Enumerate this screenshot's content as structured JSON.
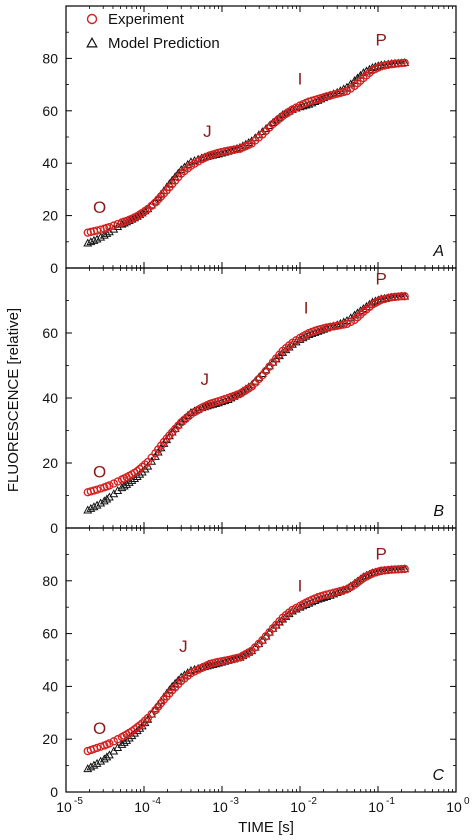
{
  "chart_data": {
    "type": "scatter",
    "xlabel": "TIME [s]",
    "ylabel": "FLUORESCENCE [relative]",
    "x_scale": "log",
    "xlim": [
      1e-05,
      1
    ],
    "x_ticks": [
      {
        "base": "10",
        "exp": "-5"
      },
      {
        "base": "10",
        "exp": "-4"
      },
      {
        "base": "10",
        "exp": "-3"
      },
      {
        "base": "10",
        "exp": "-2"
      },
      {
        "base": "10",
        "exp": "-1"
      },
      {
        "base": "10",
        "exp": "0"
      }
    ],
    "legend": {
      "position": "top-left",
      "entries": [
        {
          "label": "Experiment",
          "marker": "circle",
          "color": "#d42020"
        },
        {
          "label": "Model Prediction",
          "marker": "triangle",
          "color": "#111111"
        }
      ]
    },
    "colors": {
      "experiment": "#d42020",
      "model": "#111111"
    },
    "panels": [
      {
        "panel_label": "A",
        "ylim": [
          0,
          100
        ],
        "y_ticks": [
          "0",
          "20",
          "40",
          "60",
          "80"
        ],
        "annotations": [
          {
            "text": "O",
            "x": 2.7e-05,
            "y": 21
          },
          {
            "text": "J",
            "x": 0.00065,
            "y": 50
          },
          {
            "text": "I",
            "x": 0.01,
            "y": 70
          },
          {
            "text": "P",
            "x": 0.11,
            "y": 85
          }
        ],
        "series": [
          {
            "name": "Experiment",
            "x": [
              1.9e-05,
              2.5e-05,
              3.1e-05,
              3.6e-05,
              4.1e-05,
              4.6e-05,
              5.2e-05,
              6e-05,
              7e-05,
              8.2e-05,
              9.5e-05,
              0.000112,
              0.00014,
              0.00018,
              0.00023,
              0.0003,
              0.0004,
              0.00055,
              0.0007,
              0.0009,
              0.0012,
              0.0017,
              0.0024,
              0.0033,
              0.0045,
              0.006,
              0.008,
              0.01,
              0.013,
              0.017,
              0.022,
              0.03,
              0.04,
              0.05,
              0.065,
              0.085,
              0.11,
              0.15,
              0.2,
              0.22
            ],
            "y": [
              13.5,
              14.3,
              15.0,
              15.6,
              16.2,
              16.8,
              17.4,
              18.0,
              18.8,
              19.8,
              21.0,
              22.5,
              25.0,
              28.5,
              32.0,
              36.0,
              39.0,
              41.5,
              43.0,
              44.0,
              44.8,
              45.5,
              47.5,
              51.0,
              55.0,
              58.0,
              60.5,
              62.0,
              63.5,
              64.5,
              65.5,
              66.5,
              67.5,
              69.5,
              72.5,
              75.5,
              77.0,
              77.8,
              78.2,
              78.3
            ]
          },
          {
            "name": "Model Prediction",
            "x": [
              1.9e-05,
              2.5e-05,
              3.1e-05,
              3.6e-05,
              4.1e-05,
              4.6e-05,
              5.2e-05,
              6e-05,
              7e-05,
              8.2e-05,
              9.5e-05,
              0.000112,
              0.00014,
              0.00018,
              0.00023,
              0.0003,
              0.0004,
              0.00055,
              0.0007,
              0.0009,
              0.0012,
              0.0017,
              0.0024,
              0.0033,
              0.0045,
              0.006,
              0.008,
              0.01,
              0.013,
              0.017,
              0.022,
              0.03,
              0.04,
              0.05,
              0.065,
              0.085,
              0.11,
              0.15,
              0.2,
              0.22
            ],
            "y": [
              9.5,
              11.0,
              12.5,
              13.8,
              14.8,
              15.8,
              16.7,
              17.6,
              18.6,
              19.7,
              21.0,
              22.6,
              25.5,
              29.5,
              33.5,
              37.5,
              40.5,
              42.0,
              42.8,
              43.5,
              44.5,
              46.0,
              48.5,
              52.0,
              55.5,
              58.5,
              60.5,
              61.5,
              62.5,
              64.0,
              65.5,
              67.0,
              69.0,
              71.5,
              74.5,
              76.5,
              77.5,
              78.0,
              78.3,
              78.4
            ]
          }
        ]
      },
      {
        "panel_label": "B",
        "ylim": [
          0,
          80
        ],
        "y_ticks": [
          "0",
          "20",
          "40",
          "60"
        ],
        "annotations": [
          {
            "text": "O",
            "x": 2.7e-05,
            "y": 15.5
          },
          {
            "text": "J",
            "x": 0.0006,
            "y": 44
          },
          {
            "text": "I",
            "x": 0.012,
            "y": 66
          },
          {
            "text": "P",
            "x": 0.11,
            "y": 75
          }
        ],
        "series": [
          {
            "name": "Experiment",
            "x": [
              1.9e-05,
              2.5e-05,
              3.1e-05,
              3.6e-05,
              4.1e-05,
              4.6e-05,
              5.2e-05,
              6e-05,
              7e-05,
              8.2e-05,
              9.5e-05,
              0.000112,
              0.00014,
              0.00018,
              0.00023,
              0.0003,
              0.0004,
              0.00055,
              0.0007,
              0.0009,
              0.0012,
              0.0017,
              0.0024,
              0.0033,
              0.0045,
              0.006,
              0.008,
              0.01,
              0.013,
              0.017,
              0.022,
              0.03,
              0.04,
              0.05,
              0.065,
              0.085,
              0.11,
              0.15,
              0.2,
              0.22
            ],
            "y": [
              11.0,
              11.8,
              12.5,
              13.1,
              13.7,
              14.3,
              14.9,
              15.6,
              16.5,
              17.5,
              18.8,
              20.3,
              23.0,
              26.5,
              29.5,
              32.5,
              35.0,
              37.0,
              38.2,
              39.0,
              40.0,
              41.3,
              43.5,
              47.0,
              51.0,
              54.5,
              57.0,
              58.5,
              60.0,
              61.0,
              61.7,
              62.2,
              62.8,
              64.0,
              66.5,
              68.8,
              70.2,
              71.0,
              71.3,
              71.3
            ]
          },
          {
            "name": "Model Prediction",
            "x": [
              1.9e-05,
              2.5e-05,
              3.1e-05,
              3.6e-05,
              4.1e-05,
              4.6e-05,
              5.2e-05,
              6e-05,
              7e-05,
              8.2e-05,
              9.5e-05,
              0.000112,
              0.00014,
              0.00018,
              0.00023,
              0.0003,
              0.0004,
              0.00055,
              0.0007,
              0.0009,
              0.0012,
              0.0017,
              0.0024,
              0.0033,
              0.0045,
              0.006,
              0.008,
              0.01,
              0.013,
              0.017,
              0.022,
              0.03,
              0.04,
              0.05,
              0.065,
              0.085,
              0.11,
              0.15,
              0.2,
              0.22
            ],
            "y": [
              5.5,
              7.0,
              8.3,
              9.5,
              10.5,
              11.5,
              12.4,
              13.4,
              14.6,
              15.8,
              17.2,
              19.0,
              22.0,
              26.0,
              29.5,
              32.8,
              35.5,
              37.0,
              37.8,
              38.5,
              39.5,
              41.5,
              44.0,
              47.5,
              51.0,
              54.0,
              56.5,
              58.0,
              59.5,
              60.5,
              61.5,
              62.5,
              63.8,
              65.5,
              67.5,
              69.5,
              70.5,
              71.0,
              71.3,
              71.3
            ]
          }
        ]
      },
      {
        "panel_label": "C",
        "ylim": [
          0,
          100
        ],
        "y_ticks": [
          "0",
          "20",
          "40",
          "60",
          "80"
        ],
        "annotations": [
          {
            "text": "O",
            "x": 2.7e-05,
            "y": 22
          },
          {
            "text": "J",
            "x": 0.00032,
            "y": 53
          },
          {
            "text": "I",
            "x": 0.01,
            "y": 76
          },
          {
            "text": "P",
            "x": 0.11,
            "y": 88
          }
        ],
        "series": [
          {
            "name": "Experiment",
            "x": [
              1.9e-05,
              2.5e-05,
              3.1e-05,
              3.6e-05,
              4.1e-05,
              4.6e-05,
              5.2e-05,
              6e-05,
              7e-05,
              8.2e-05,
              9.5e-05,
              0.000112,
              0.00014,
              0.00018,
              0.00023,
              0.0003,
              0.0004,
              0.00055,
              0.0007,
              0.0009,
              0.0012,
              0.0017,
              0.0024,
              0.0033,
              0.0045,
              0.006,
              0.008,
              0.01,
              0.013,
              0.017,
              0.022,
              0.03,
              0.04,
              0.05,
              0.065,
              0.085,
              0.11,
              0.15,
              0.2,
              0.22
            ],
            "y": [
              15.5,
              16.7,
              17.6,
              18.4,
              19.2,
              20.0,
              20.8,
              21.8,
              23.0,
              24.5,
              26.0,
              28.0,
              31.0,
              35.0,
              38.5,
              42.0,
              45.0,
              47.0,
              48.5,
              49.3,
              50.0,
              51.0,
              53.5,
              57.5,
              62.0,
              66.0,
              69.0,
              70.5,
              72.3,
              73.8,
              74.8,
              75.8,
              76.8,
              78.5,
              81.0,
              82.8,
              83.8,
              84.2,
              84.4,
              84.5
            ]
          },
          {
            "name": "Model Prediction",
            "x": [
              1.9e-05,
              2.5e-05,
              3.1e-05,
              3.6e-05,
              4.1e-05,
              4.6e-05,
              5.2e-05,
              6e-05,
              7e-05,
              8.2e-05,
              9.5e-05,
              0.000112,
              0.00014,
              0.00018,
              0.00023,
              0.0003,
              0.0004,
              0.00055,
              0.0007,
              0.0009,
              0.0012,
              0.0017,
              0.0024,
              0.0033,
              0.0045,
              0.006,
              0.008,
              0.01,
              0.013,
              0.017,
              0.022,
              0.03,
              0.04,
              0.05,
              0.065,
              0.085,
              0.11,
              0.15,
              0.2,
              0.22
            ],
            "y": [
              8.8,
              10.8,
              12.5,
              14.0,
              15.5,
              16.8,
              18.0,
              19.5,
              21.3,
              23.2,
              25.0,
              27.5,
              31.5,
              36.0,
              40.0,
              43.5,
              46.0,
              47.2,
              48.0,
              48.8,
              49.8,
              51.0,
              53.5,
              57.5,
              62.0,
              65.5,
              68.5,
              70.0,
              71.5,
              73.0,
              74.0,
              75.5,
              77.0,
              79.0,
              81.5,
              83.0,
              83.8,
              84.2,
              84.4,
              84.5
            ]
          }
        ]
      }
    ]
  }
}
